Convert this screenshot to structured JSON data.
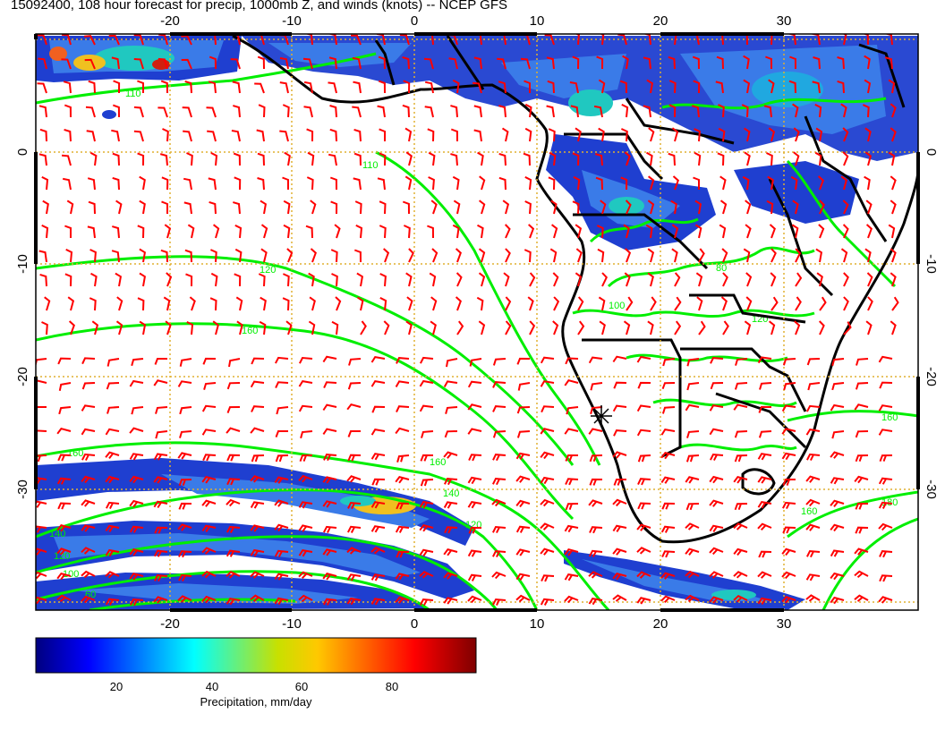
{
  "title": "15092400, 108 hour forecast for precip, 1000mb Z, and winds (knots) -- NCEP GFS",
  "map": {
    "lon_ticks": [
      "-20",
      "-10",
      "0",
      "10",
      "20",
      "30"
    ],
    "lat_ticks": [
      "0",
      "-10",
      "-20",
      "-30"
    ],
    "lon_range": [
      -31,
      41
    ],
    "lat_range": [
      -41,
      9.5
    ],
    "grid": "dotted orange",
    "colors": {
      "geopotential_contours": "#00ee00",
      "wind_barbs": "#ff0000",
      "coastlines": "#000000",
      "grid": "#e0b030"
    },
    "contour_labels": [
      "110",
      "110",
      "120",
      "140",
      "160",
      "160",
      "140",
      "160",
      "140",
      "120",
      "100",
      "80",
      "60",
      "100",
      "80",
      "120",
      "160",
      "160",
      "180"
    ],
    "marker": "station-marker"
  },
  "colorbar": {
    "ticks": [
      "20",
      "40",
      "60",
      "80"
    ],
    "label": "Precipitation, mm/day",
    "range": [
      0,
      100
    ]
  }
}
